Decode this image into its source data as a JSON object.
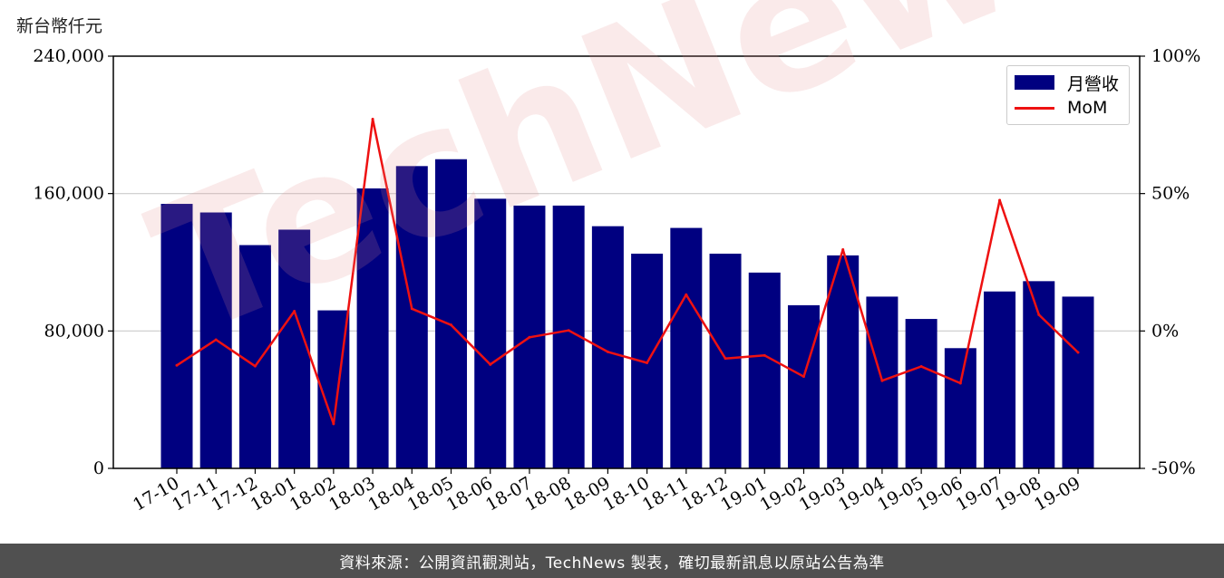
{
  "unit_label": "新台幣仟元",
  "watermark_text": "TechNews",
  "footer_text": "資料來源：公開資訊觀測站，TechNews 製表，確切最新訊息以原站公告為準",
  "colors": {
    "bar": "#000080",
    "line": "#ee1111",
    "grid": "#cccccc",
    "footer_bg": "#505050"
  },
  "chart_data": {
    "type": "bar",
    "categories": [
      "17-10",
      "17-11",
      "17-12",
      "18-01",
      "18-02",
      "18-03",
      "18-04",
      "18-05",
      "18-06",
      "18-07",
      "18-08",
      "18-09",
      "18-10",
      "18-11",
      "18-12",
      "19-01",
      "19-02",
      "19-03",
      "19-04",
      "19-05",
      "19-06",
      "19-07",
      "19-08",
      "19-09"
    ],
    "series": [
      {
        "name": "月營收",
        "type": "bar",
        "axis": "left",
        "values": [
          154000,
          149000,
          130000,
          139000,
          92000,
          163000,
          176000,
          180000,
          157000,
          153000,
          153000,
          141000,
          125000,
          140000,
          125000,
          114000,
          95000,
          124000,
          100000,
          87000,
          70000,
          103000,
          109000,
          100000
        ]
      },
      {
        "name": "MoM",
        "type": "line",
        "axis": "right",
        "values": [
          -12.5,
          -3.2,
          -12.8,
          7.2,
          -33.8,
          77.1,
          8.1,
          2.2,
          -12.2,
          -2.3,
          0.2,
          -7.6,
          -11.6,
          13.2,
          -10.0,
          -8.9,
          -16.6,
          29.6,
          -18.1,
          -12.9,
          -19.0,
          47.6,
          5.9,
          -7.8
        ]
      }
    ],
    "y_left": {
      "range": [
        0,
        240000
      ],
      "ticks": [
        0,
        80000,
        160000,
        240000
      ],
      "tick_labels": [
        "0",
        "80,000",
        "160,000",
        "240,000"
      ]
    },
    "y_right": {
      "range": [
        -50,
        100
      ],
      "ticks": [
        -50,
        0,
        50,
        100
      ],
      "tick_labels": [
        "-50%",
        "0%",
        "50%",
        "100%"
      ]
    },
    "grid": true,
    "legend_position": "top-right",
    "xlabel": "",
    "ylabel": ""
  }
}
